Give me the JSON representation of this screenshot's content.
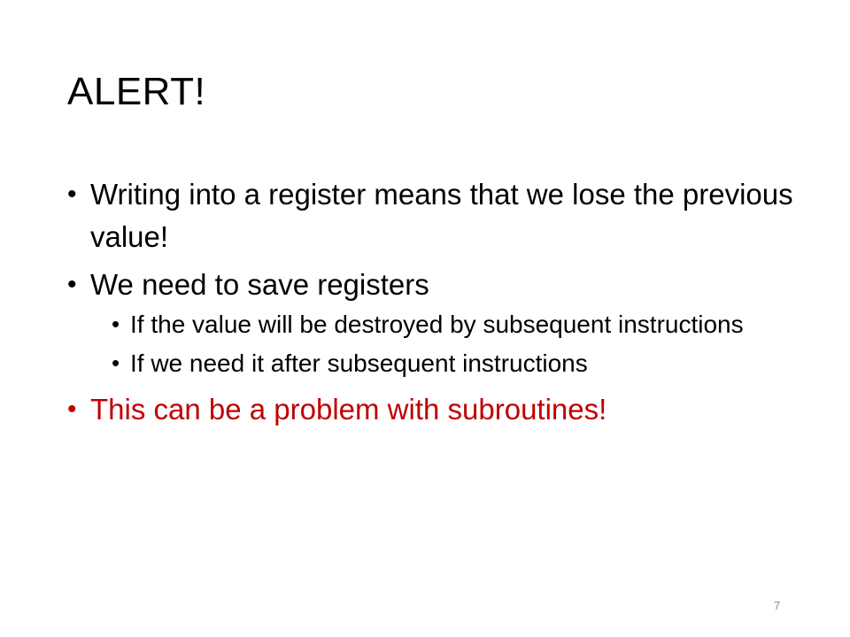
{
  "slide": {
    "title": "ALERT!",
    "bullets": [
      {
        "text": "Writing into a register means that we lose the previous value!"
      },
      {
        "text": "We need to save registers",
        "sub": [
          {
            "text": "If the value will be destroyed by subsequent instructions"
          },
          {
            "text": "If we need it after subsequent instructions"
          }
        ]
      },
      {
        "text": "This can be a problem with subroutines!",
        "color": "#c00000"
      }
    ],
    "bullet_glyph": "•",
    "page_number": "7"
  },
  "colors": {
    "text": "#000000",
    "highlight": "#c00000",
    "page_number": "#8c8c8c",
    "background": "#ffffff"
  }
}
